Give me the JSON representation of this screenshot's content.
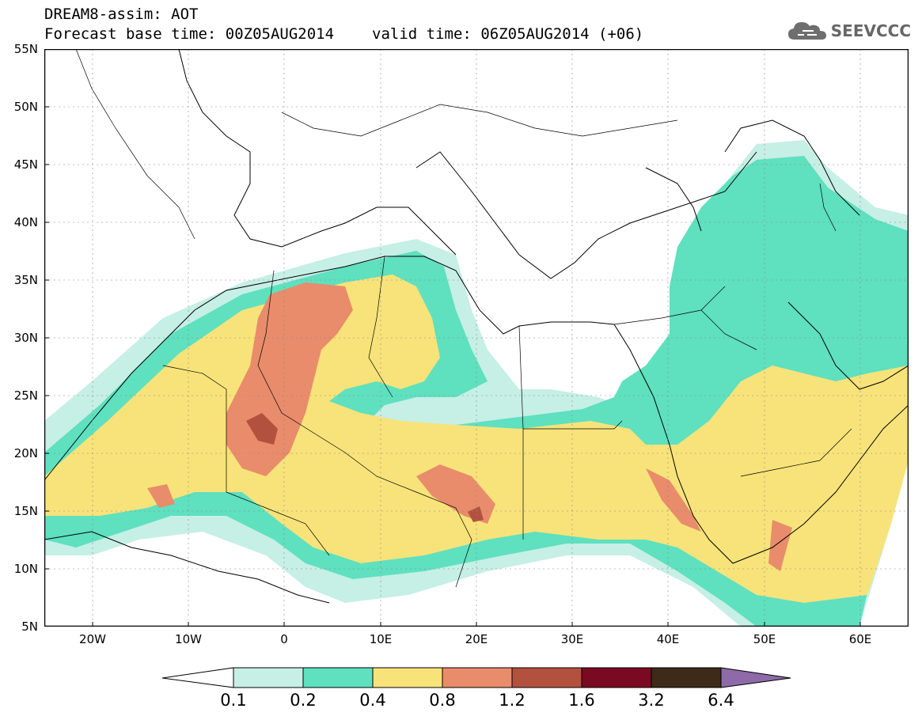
{
  "header": {
    "title_line1": "DREAM8-assim: AOT",
    "title_line2_base": "Forecast base time: 00Z05AUG2014",
    "title_line2_valid": "valid time: 06Z05AUG2014 (+06)"
  },
  "logo": {
    "text": "SEEVCCC",
    "icon": "cloud-icon"
  },
  "map": {
    "lat_labels": [
      "55N",
      "50N",
      "45N",
      "40N",
      "35N",
      "30N",
      "25N",
      "20N",
      "15N",
      "10N",
      "5N"
    ],
    "lon_labels": [
      "20W",
      "10W",
      "0",
      "10E",
      "20E",
      "30E",
      "40E",
      "50E",
      "60E"
    ],
    "extent": {
      "lon": [
        -25,
        65
      ],
      "lat": [
        5,
        55
      ]
    },
    "field": "AOT"
  },
  "colorbar": {
    "labels": [
      "0.1",
      "0.2",
      "0.4",
      "0.8",
      "1.2",
      "1.6",
      "3.2",
      "6.4"
    ],
    "colors": [
      "#ffffff",
      "#c6efe6",
      "#5fe0bf",
      "#f7e37a",
      "#e98c6b",
      "#b3513f",
      "#7a0a22",
      "#3d2a18",
      "#8e6aa8"
    ]
  }
}
